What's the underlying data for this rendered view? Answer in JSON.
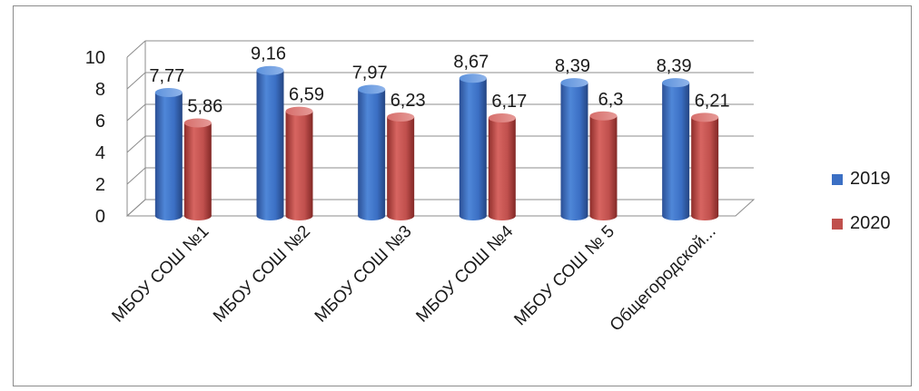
{
  "chart_data": {
    "type": "bar",
    "categories": [
      "МБОУ СОШ №1",
      "МБОУ СОШ №2",
      "МБОУ СОШ №3",
      "МБОУ СОШ №4",
      "МБОУ СОШ № 5",
      "Общегородской..."
    ],
    "series": [
      {
        "name": "2019",
        "color": "#3b6fc4",
        "values": [
          7.77,
          9.16,
          7.97,
          8.67,
          8.39,
          8.39
        ],
        "labels": [
          "7,77",
          "9,16",
          "7,97",
          "8,67",
          "8,39",
          "8,39"
        ]
      },
      {
        "name": "2020",
        "color": "#c0504d",
        "values": [
          5.86,
          6.59,
          6.23,
          6.17,
          6.3,
          6.21
        ],
        "labels": [
          "5,86",
          "6,59",
          "6,23",
          "6,17",
          "6,3",
          "6,21"
        ]
      }
    ],
    "yticks": [
      "0",
      "2",
      "4",
      "6",
      "8",
      "10"
    ],
    "ylim": [
      0,
      10
    ],
    "grid": true,
    "legend": "right"
  }
}
